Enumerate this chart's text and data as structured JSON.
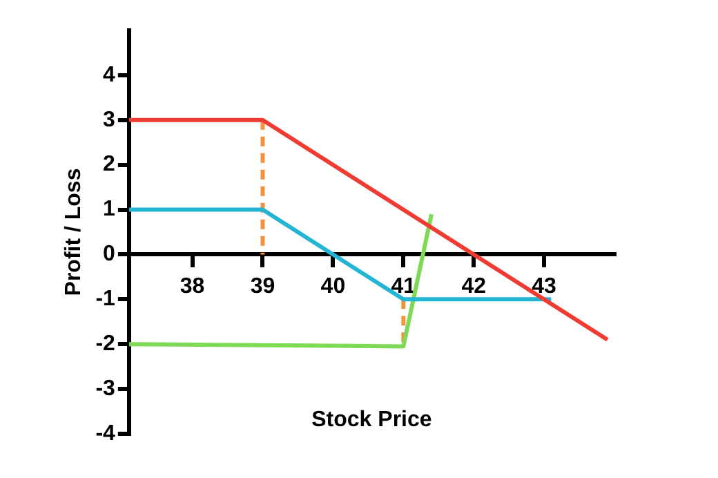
{
  "chart_data": {
    "type": "line",
    "xlabel": "Stock Price",
    "ylabel": "Profit / Loss",
    "xlim": [
      37.1,
      44
    ],
    "xticks": [
      38,
      39,
      40,
      41,
      42,
      43
    ],
    "ylim": [
      -4,
      5
    ],
    "yticks": [
      -4,
      -3,
      -2,
      -1,
      0,
      1,
      2,
      3,
      4
    ],
    "series": [
      {
        "color": "#f03a32",
        "x": [
          37.1,
          39,
          43.9
        ],
        "values": [
          3,
          3,
          -1.9
        ]
      },
      {
        "color": "#23b5d3",
        "x": [
          37.1,
          39,
          41,
          43.1
        ],
        "values": [
          1,
          1,
          -1,
          -1
        ]
      },
      {
        "color": "#7ed957",
        "x": [
          37.1,
          41,
          41.4
        ],
        "values": [
          -2,
          -2.05,
          0.9
        ]
      },
      {
        "color": "#f5923e",
        "x": [
          39,
          39
        ],
        "values": [
          3,
          0
        ],
        "line_style": "dashed"
      },
      {
        "color": "#f5923e",
        "x": [
          41,
          41
        ],
        "values": [
          -1,
          -2
        ],
        "line_style": "dashed"
      }
    ],
    "grid": false,
    "legend": false,
    "marker": "none",
    "line_style": "solid"
  }
}
